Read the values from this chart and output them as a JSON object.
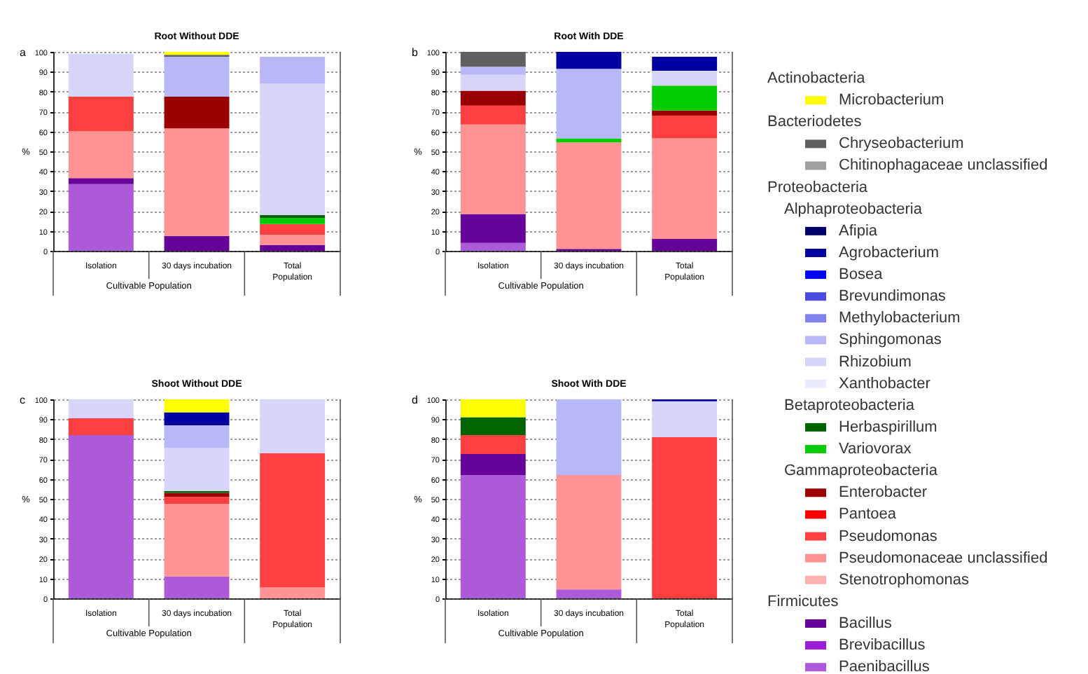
{
  "chart_data": [
    {
      "type": "bar",
      "stacked": true,
      "title": "Root Without DDE",
      "ylabel": "%",
      "categories": [
        "Isolation",
        "30 days incubation",
        "Total Population"
      ],
      "ylim": [
        0,
        100
      ],
      "yticks": [
        0,
        10,
        20,
        30,
        40,
        50,
        60,
        70,
        80,
        90,
        100
      ],
      "grid": "y",
      "legend": "right",
      "annotations": [
        "a",
        "Cultivable Population"
      ],
      "series": [
        {
          "name": "Paenibacillus",
          "color": "#ad5ad8",
          "values": [
            33.5,
            null,
            null
          ]
        },
        {
          "name": "Brevibacillus",
          "color": "#9b1fd6",
          "values": [
            null,
            null,
            null
          ]
        },
        {
          "name": "Bacillus",
          "color": "#66049a",
          "values": [
            3,
            7.5,
            3
          ]
        },
        {
          "name": "Stenotrophomonas",
          "color": "#ffb0b0",
          "values": [
            null,
            null,
            null
          ]
        },
        {
          "name": "Pseudomonaceae unclassified",
          "color": "#ff9494",
          "values": [
            23.5,
            54,
            5
          ]
        },
        {
          "name": "Pseudomonas",
          "color": "#ff4040",
          "values": [
            17.5,
            null,
            5.5
          ]
        },
        {
          "name": "Pantoea",
          "color": "#ff0000",
          "values": [
            null,
            null,
            null
          ]
        },
        {
          "name": "Enterobacter",
          "color": "#9b0000",
          "values": [
            null,
            16,
            null
          ]
        },
        {
          "name": "Variovorax",
          "color": "#00cc00",
          "values": [
            null,
            null,
            3
          ]
        },
        {
          "name": "Herbaspirillum",
          "color": "#006400",
          "values": [
            null,
            null,
            1.5
          ]
        },
        {
          "name": "Xanthobacter",
          "color": "#ebebff",
          "values": [
            null,
            null,
            null
          ]
        },
        {
          "name": "Rhizobium",
          "color": "#d6d6fc",
          "values": [
            21.5,
            null,
            66
          ]
        },
        {
          "name": "Sphingomonas",
          "color": "#b8b8f8",
          "values": [
            null,
            20,
            13.5
          ]
        },
        {
          "name": "Methylobacterium",
          "color": "#8282f0",
          "values": [
            null,
            null,
            null
          ]
        },
        {
          "name": "Brevundimonas",
          "color": "#4a4ae0",
          "values": [
            null,
            null,
            null
          ]
        },
        {
          "name": "Bosea",
          "color": "#0000f0",
          "values": [
            null,
            null,
            null
          ]
        },
        {
          "name": "Afipia",
          "color": "#00006a",
          "values": [
            null,
            null,
            null
          ]
        },
        {
          "name": "Chitinophagaceae unclassified",
          "color": "#a0a0a0",
          "values": [
            null,
            null,
            null
          ]
        },
        {
          "name": "Chryseobacterium",
          "color": "#606060",
          "values": [
            null,
            1,
            null
          ]
        },
        {
          "name": "Microbacterium",
          "color": "#ffff00",
          "values": [
            null,
            1.5,
            null
          ]
        }
      ]
    },
    {
      "type": "bar",
      "stacked": true,
      "title": "Root With DDE",
      "ylabel": "%",
      "categories": [
        "Isolation",
        "30 days incubation",
        "Total Population"
      ],
      "ylim": [
        0,
        100
      ],
      "yticks": [
        0,
        10,
        20,
        30,
        40,
        50,
        60,
        70,
        80,
        90,
        100
      ],
      "grid": "y",
      "annotations": [
        "b",
        "Cultivable Population"
      ],
      "series": [
        {
          "name": "Paenibacillus",
          "color": "#ad5ad8",
          "values": [
            4,
            null,
            null
          ]
        },
        {
          "name": "Bacillus",
          "color": "#66049a",
          "values": [
            14.5,
            1,
            6
          ]
        },
        {
          "name": "Pseudomonaceae unclassified",
          "color": "#ff9494",
          "values": [
            45,
            53.5,
            50.5
          ]
        },
        {
          "name": "Pseudomonas",
          "color": "#ff4040",
          "values": [
            9.5,
            null,
            11.5
          ]
        },
        {
          "name": "Enterobacter",
          "color": "#9b0000",
          "values": [
            7.5,
            null,
            2.5
          ]
        },
        {
          "name": "Variovorax",
          "color": "#00cc00",
          "values": [
            null,
            2,
            12.5
          ]
        },
        {
          "name": "Rhizobium",
          "color": "#d6d6fc",
          "values": [
            8,
            null,
            7.5
          ]
        },
        {
          "name": "Sphingomonas",
          "color": "#b8b8f8",
          "values": [
            4,
            35,
            null
          ]
        },
        {
          "name": "Agrobacterium",
          "color": "#0000a0",
          "values": [
            null,
            8.5,
            7
          ]
        },
        {
          "name": "Chryseobacterium",
          "color": "#606060",
          "values": [
            7.5,
            null,
            null
          ]
        }
      ]
    },
    {
      "type": "bar",
      "stacked": true,
      "title": "Shoot Without DDE",
      "ylabel": "%",
      "categories": [
        "Isolation",
        "30 days incubation",
        "Total Population"
      ],
      "ylim": [
        0,
        100
      ],
      "yticks": [
        0,
        10,
        20,
        30,
        40,
        50,
        60,
        70,
        80,
        90,
        100
      ],
      "grid": "y",
      "annotations": [
        "c",
        "Cultivable Population"
      ],
      "series": [
        {
          "name": "Paenibacillus",
          "color": "#ad5ad8",
          "values": [
            82,
            11,
            null
          ]
        },
        {
          "name": "Pseudomonaceae unclassified",
          "color": "#ff9494",
          "values": [
            null,
            36.5,
            5.5
          ]
        },
        {
          "name": "Pseudomonas",
          "color": "#ff4040",
          "values": [
            8.5,
            3.5,
            67.5
          ]
        },
        {
          "name": "Enterobacter",
          "color": "#9b0000",
          "values": [
            null,
            2,
            null
          ]
        },
        {
          "name": "Herbaspirillum",
          "color": "#006400",
          "values": [
            null,
            1,
            null
          ]
        },
        {
          "name": "Rhizobium",
          "color": "#d6d6fc",
          "values": [
            9.5,
            21.5,
            27
          ]
        },
        {
          "name": "Sphingomonas",
          "color": "#b8b8f8",
          "values": [
            null,
            11.5,
            null
          ]
        },
        {
          "name": "Agrobacterium",
          "color": "#0000a0",
          "values": [
            null,
            6.5,
            null
          ]
        },
        {
          "name": "Microbacterium",
          "color": "#ffff00",
          "values": [
            null,
            6.5,
            null
          ]
        }
      ]
    },
    {
      "type": "bar",
      "stacked": true,
      "title": "Shoot With DDE",
      "ylabel": "%",
      "categories": [
        "Isolation",
        "30 days incubation",
        "Total Population"
      ],
      "ylim": [
        0,
        100
      ],
      "yticks": [
        0,
        10,
        20,
        30,
        40,
        50,
        60,
        70,
        80,
        90,
        100
      ],
      "grid": "y",
      "annotations": [
        "d",
        "Cultivable Population"
      ],
      "series": [
        {
          "name": "Paenibacillus",
          "color": "#ad5ad8",
          "values": [
            62,
            4.5,
            null
          ]
        },
        {
          "name": "Bacillus",
          "color": "#66049a",
          "values": [
            10.5,
            null,
            null
          ]
        },
        {
          "name": "Pseudomonaceae unclassified",
          "color": "#ff9494",
          "values": [
            null,
            57.5,
            null
          ]
        },
        {
          "name": "Pseudomonas",
          "color": "#ff4040",
          "values": [
            9.5,
            null,
            81
          ]
        },
        {
          "name": "Herbaspirillum",
          "color": "#006400",
          "values": [
            9,
            null,
            null
          ]
        },
        {
          "name": "Rhizobium",
          "color": "#d6d6fc",
          "values": [
            null,
            null,
            18
          ]
        },
        {
          "name": "Sphingomonas",
          "color": "#b8b8f8",
          "values": [
            null,
            38,
            null
          ]
        },
        {
          "name": "Agrobacterium",
          "color": "#0000a0",
          "values": [
            null,
            null,
            1
          ]
        },
        {
          "name": "Microbacterium",
          "color": "#ffff00",
          "values": [
            9,
            null,
            null
          ]
        }
      ]
    },
    {
      "type": "other",
      "annotations": [
        "Actinobacteria",
        "Bacteriodetes",
        "Proteobacteria",
        "Alphaproteobacteria",
        "Betaproteobacteria",
        "Gammaproteobacteria",
        "Firmicutes"
      ]
    }
  ]
}
